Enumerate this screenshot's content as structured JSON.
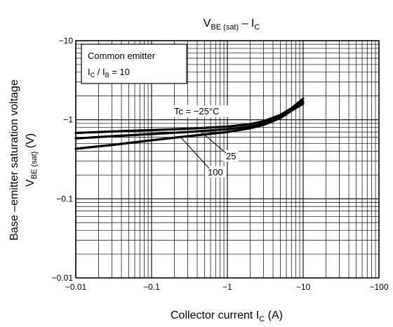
{
  "chart_data": {
    "type": "line",
    "title": {
      "main": "V",
      "main_sub": "BE (sat)",
      "sep": " – I",
      "end_sub": "C"
    },
    "xlabel": {
      "text": "Collector current   I",
      "sub": "C",
      "unit": "   (A)"
    },
    "ylabel": {
      "line1": "Base –emitter saturation voltage",
      "line2_main": "V",
      "line2_sub": "BE (sat)",
      "line2_unit": "   (V)"
    },
    "x_scale": "log",
    "y_scale": "log",
    "xlim": [
      -0.01,
      -100
    ],
    "ylim": [
      -0.01,
      -10
    ],
    "x_ticks": [
      "−0.01",
      "−0.1",
      "−1",
      "−10",
      "−100"
    ],
    "y_ticks": [
      "−0.01",
      "−0.1",
      "−1",
      "−10"
    ],
    "grid": true,
    "legend_box": {
      "line1": "Common emitter",
      "line2_a": "I",
      "line2_a_sub": "C",
      "line2_b": " / I",
      "line2_b_sub": "B",
      "line2_c": " = 10"
    },
    "series": [
      {
        "name": "Tc = −25°C",
        "x": [
          -0.01,
          -0.03,
          -0.1,
          -0.3,
          -1,
          -2,
          -3,
          -5,
          -7,
          -10
        ],
        "y": [
          -0.68,
          -0.71,
          -0.74,
          -0.77,
          -0.82,
          -0.88,
          -0.96,
          -1.15,
          -1.4,
          -1.85
        ]
      },
      {
        "name": "25",
        "x": [
          -0.01,
          -0.03,
          -0.1,
          -0.3,
          -1,
          -2,
          -3,
          -5,
          -7,
          -10
        ],
        "y": [
          -0.58,
          -0.62,
          -0.66,
          -0.7,
          -0.76,
          -0.82,
          -0.9,
          -1.1,
          -1.35,
          -1.7
        ]
      },
      {
        "name": "100",
        "x": [
          -0.01,
          -0.03,
          -0.1,
          -0.3,
          -1,
          -2,
          -3,
          -5,
          -7,
          -10
        ],
        "y": [
          -0.43,
          -0.48,
          -0.55,
          -0.62,
          -0.7,
          -0.78,
          -0.86,
          -1.05,
          -1.3,
          -1.6
        ]
      }
    ]
  }
}
